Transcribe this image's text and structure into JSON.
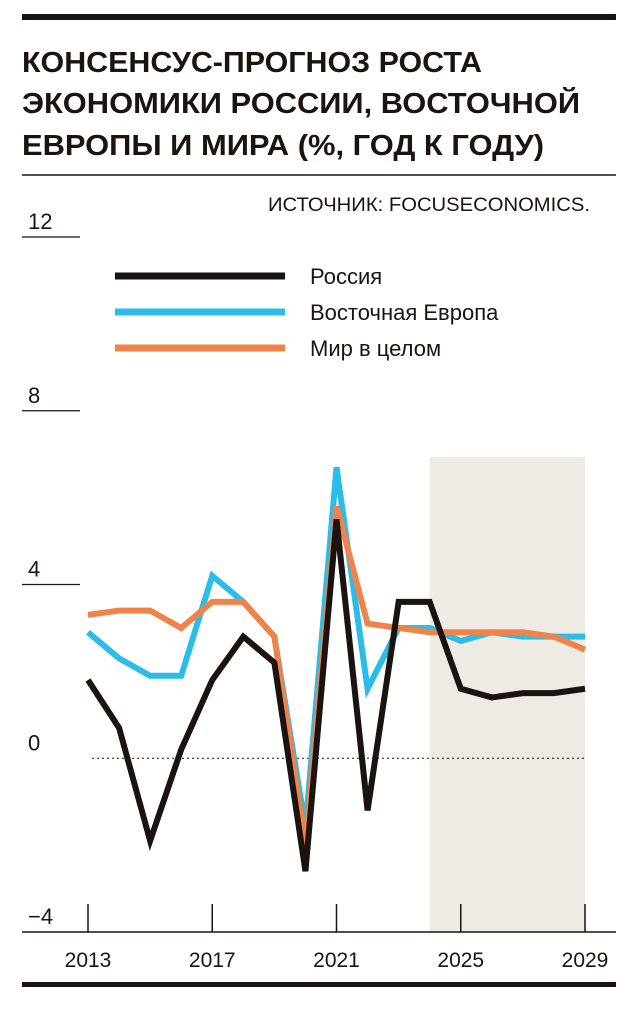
{
  "chart_data": {
    "type": "line",
    "title": [
      "КОНСЕНСУС-ПРОГНОЗ РОСТА",
      "ЭКОНОМИКИ РОССИИ, ВОСТОЧНОЙ",
      "ЕВРОПЫ И МИРА (%, ГОД К ГОДУ)"
    ],
    "source": "ИСТОЧНИК: FOCUSECONOMICS.",
    "x": [
      2013,
      2014,
      2015,
      2016,
      2017,
      2018,
      2019,
      2020,
      2021,
      2022,
      2023,
      2024,
      2025,
      2026,
      2027,
      2028,
      2029
    ],
    "series": [
      {
        "name": "Россия",
        "color": "#1a1311",
        "values": [
          1.8,
          0.7,
          -1.9,
          0.2,
          1.8,
          2.8,
          2.2,
          -2.6,
          5.5,
          -1.2,
          3.6,
          3.6,
          1.6,
          1.4,
          1.5,
          1.5,
          1.6
        ]
      },
      {
        "name": "Восточная Европа",
        "color": "#2bbde8",
        "values": [
          2.9,
          2.3,
          1.9,
          1.9,
          4.2,
          3.6,
          2.8,
          -1.6,
          6.7,
          1.6,
          3.0,
          3.0,
          2.7,
          2.9,
          2.8,
          2.8,
          2.8
        ]
      },
      {
        "name": "Мир в целом",
        "color": "#f0834a",
        "values": [
          3.3,
          3.4,
          3.4,
          3.0,
          3.6,
          3.6,
          2.8,
          -2.0,
          5.8,
          3.1,
          3.0,
          2.9,
          2.9,
          2.9,
          2.9,
          2.8,
          2.5
        ]
      }
    ],
    "forecast_span": [
      2024,
      2029
    ],
    "forecast_color": "#eeebe4",
    "xlim": [
      2013,
      2029
    ],
    "xticks": [
      2013,
      2017,
      2021,
      2025,
      2029
    ],
    "ylim": [
      -4,
      12
    ],
    "yticks": [
      {
        "value": -4,
        "label": "−4"
      },
      0,
      4,
      8,
      12
    ]
  }
}
